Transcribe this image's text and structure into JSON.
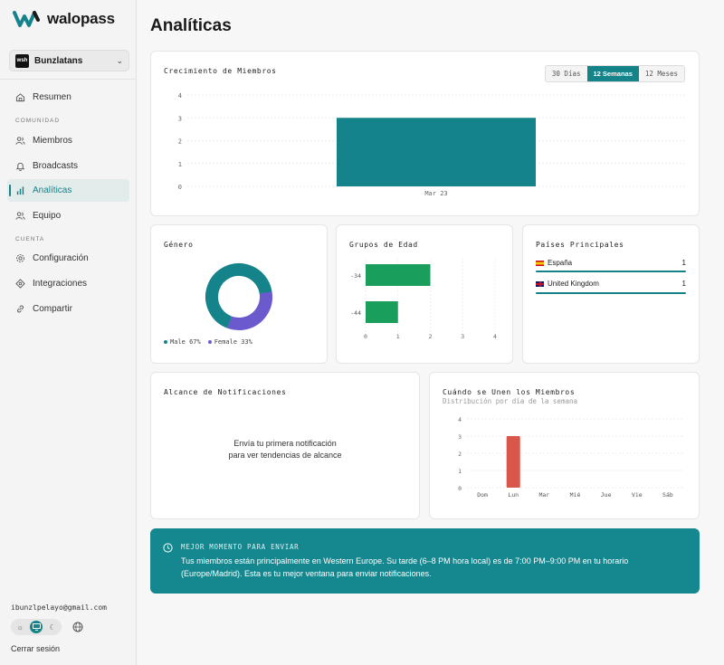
{
  "brand": {
    "name": "walopass"
  },
  "org": {
    "badge": "wsh",
    "name": "Bunzlatans"
  },
  "nav": {
    "summary": "Resumen",
    "section_community": "COMUNIDAD",
    "members": "Miembros",
    "broadcasts": "Broadcasts",
    "analytics": "Analíticas",
    "team": "Equipo",
    "section_account": "CUENTA",
    "settings": "Configuración",
    "integrations": "Integraciones",
    "share": "Compartir"
  },
  "user": {
    "email": "ibunzlpelayo@gmail.com",
    "logout": "Cerrar sesión"
  },
  "page": {
    "title": "Analíticas"
  },
  "growth": {
    "title": "Crecimiento de Miembros",
    "ranges": [
      "30 Días",
      "12 Semanas",
      "12 Meses"
    ],
    "active_range": "12 Semanas"
  },
  "gender": {
    "title": "Género",
    "legend_male": "Male 67%",
    "legend_female": "Female 33%"
  },
  "age": {
    "title": "Grupos de Edad"
  },
  "countries": {
    "title": "Países Principales",
    "items": [
      {
        "name": "España",
        "count": "1"
      },
      {
        "name": "United Kingdom",
        "count": "1"
      }
    ]
  },
  "reach": {
    "title": "Alcance de Notificaciones",
    "empty": "Envía tu primera notificación para ver tendencias de alcance"
  },
  "join": {
    "title": "Cuándo se Unen los Miembros",
    "subtitle": "Distribución por día de la semana"
  },
  "banner": {
    "label": "MEJOR MOMENTO PARA ENVIAR",
    "text": "Tus miembros están principalmente en Western Europe. Su tarde (6–8 PM hora local) es de 7:00 PM–9:00 PM en tu horario (Europe/Madrid). Esta es tu mejor ventana para enviar notificaciones."
  },
  "colors": {
    "teal": "#15838a",
    "female": "#6a5acd",
    "age_bar": "#1a9e5b",
    "day_bar": "#d9574a"
  },
  "chart_data": [
    {
      "type": "bar",
      "title": "Crecimiento de Miembros",
      "categories": [
        "Mar 23"
      ],
      "values": [
        3
      ],
      "ylim": [
        0,
        4
      ],
      "yticks": [
        "0",
        "1",
        "2",
        "3",
        "4"
      ]
    },
    {
      "type": "pie",
      "title": "Género",
      "categories": [
        "Male",
        "Female"
      ],
      "values": [
        67,
        33
      ]
    },
    {
      "type": "bar",
      "orientation": "horizontal",
      "title": "Grupos de Edad",
      "categories": [
        "-34",
        "-44"
      ],
      "values": [
        2,
        1
      ],
      "xlim": [
        0,
        4
      ],
      "xticks": [
        "0",
        "1",
        "2",
        "3",
        "4"
      ]
    },
    {
      "type": "bar",
      "title": "Cuándo se Unen los Miembros",
      "categories": [
        "Dom",
        "Lun",
        "Mar",
        "Mié",
        "Jue",
        "Vie",
        "Sáb"
      ],
      "values": [
        0,
        3,
        0,
        0,
        0,
        0,
        0
      ],
      "ylim": [
        0,
        4
      ],
      "yticks": [
        "0",
        "1",
        "2",
        "3",
        "4"
      ]
    }
  ]
}
